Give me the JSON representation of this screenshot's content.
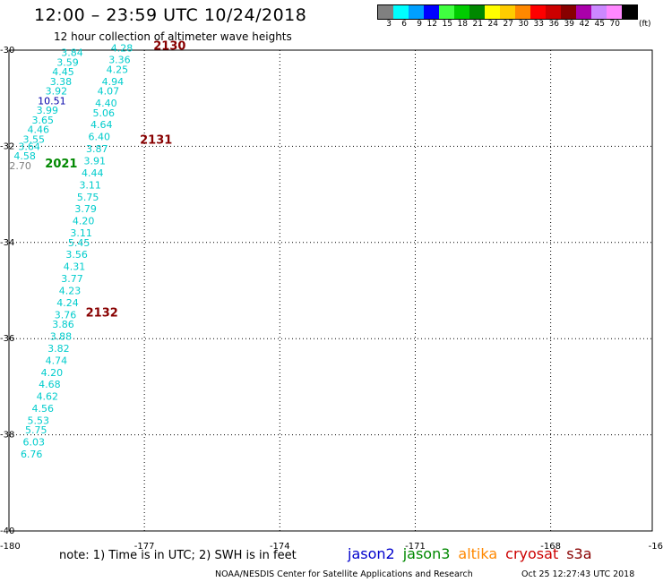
{
  "header": {
    "title": "12:00 – 23:59 UTC 10/24/2018",
    "subtitle": "12 hour collection of altimeter wave heights"
  },
  "scale": {
    "unit": "(ft)",
    "swatches": [
      {
        "label": "3",
        "color": "#808080"
      },
      {
        "label": "6",
        "color": "#00ffff"
      },
      {
        "label": "9",
        "color": "#00a0ff"
      },
      {
        "label": "12",
        "color": "#0000ff"
      },
      {
        "label": "15",
        "color": "#40ff40"
      },
      {
        "label": "18",
        "color": "#00cc00"
      },
      {
        "label": "21",
        "color": "#008800"
      },
      {
        "label": "24",
        "color": "#ffff00"
      },
      {
        "label": "27",
        "color": "#ffcc00"
      },
      {
        "label": "30",
        "color": "#ff8800"
      },
      {
        "label": "33",
        "color": "#ff0000"
      },
      {
        "label": "36",
        "color": "#cc0000"
      },
      {
        "label": "39",
        "color": "#880000"
      },
      {
        "label": "42",
        "color": "#aa00aa"
      },
      {
        "label": "45",
        "color": "#cc88ff"
      },
      {
        "label": "70",
        "color": "#ff88ff"
      },
      {
        "label": "",
        "color": "#000000"
      }
    ]
  },
  "axes": {
    "lon_labels": [
      "-180",
      "-177",
      "-174",
      "-171",
      "-168",
      "-16"
    ],
    "lat_labels": [
      "-30",
      "-32",
      "-34",
      "-36",
      "-38",
      "-40"
    ]
  },
  "track_labels": [
    {
      "text": "2130",
      "lon": -176.8,
      "lat": -29.9,
      "color": "#880000"
    },
    {
      "text": "2131",
      "lon": -177.1,
      "lat": -31.85,
      "color": "#880000"
    },
    {
      "text": "2132",
      "lon": -178.3,
      "lat": -35.45,
      "color": "#880000"
    },
    {
      "text": "2021",
      "lon": -179.2,
      "lat": -32.35,
      "color": "#008800"
    }
  ],
  "tracks": {
    "track_a": [
      {
        "v": "3.84",
        "lon": -178.6,
        "lat": -30.05,
        "color": "#00cccc"
      },
      {
        "v": "3.59",
        "lon": -178.7,
        "lat": -30.25,
        "color": "#00cccc"
      },
      {
        "v": "4.45",
        "lon": -178.8,
        "lat": -30.45,
        "color": "#00cccc"
      },
      {
        "v": "3.38",
        "lon": -178.85,
        "lat": -30.65,
        "color": "#00cccc"
      },
      {
        "v": "3.92",
        "lon": -178.95,
        "lat": -30.85,
        "color": "#00cccc"
      },
      {
        "v": "10.51",
        "lon": -179.05,
        "lat": -31.05,
        "color": "#0000aa"
      },
      {
        "v": "3.99",
        "lon": -179.15,
        "lat": -31.25,
        "color": "#00cccc"
      },
      {
        "v": "3.65",
        "lon": -179.25,
        "lat": -31.45,
        "color": "#00cccc"
      },
      {
        "v": "4.46",
        "lon": -179.35,
        "lat": -31.65,
        "color": "#00cccc"
      },
      {
        "v": "3.55",
        "lon": -179.45,
        "lat": -31.85,
        "color": "#00cccc"
      },
      {
        "v": "3.64",
        "lon": -179.55,
        "lat": -32.0,
        "color": "#00cccc"
      },
      {
        "v": "4.58",
        "lon": -179.65,
        "lat": -32.2,
        "color": "#00cccc"
      },
      {
        "v": "2.70",
        "lon": -179.75,
        "lat": -32.4,
        "color": "#808080"
      }
    ],
    "track_b": [
      {
        "v": "4.28",
        "lon": -177.5,
        "lat": -29.95,
        "color": "#00cccc"
      },
      {
        "v": "3.36",
        "lon": -177.55,
        "lat": -30.2,
        "color": "#00cccc"
      },
      {
        "v": "4.25",
        "lon": -177.6,
        "lat": -30.4,
        "color": "#00cccc"
      },
      {
        "v": "4.94",
        "lon": -177.7,
        "lat": -30.65,
        "color": "#00cccc"
      },
      {
        "v": "4.07",
        "lon": -177.8,
        "lat": -30.85,
        "color": "#00cccc"
      },
      {
        "v": "4.40",
        "lon": -177.85,
        "lat": -31.1,
        "color": "#00cccc"
      },
      {
        "v": "5.06",
        "lon": -177.9,
        "lat": -31.3,
        "color": "#00cccc"
      },
      {
        "v": "4.64",
        "lon": -177.95,
        "lat": -31.55,
        "color": "#00cccc"
      },
      {
        "v": "6.40",
        "lon": -178.0,
        "lat": -31.8,
        "color": "#00cccc"
      },
      {
        "v": "3.87",
        "lon": -178.05,
        "lat": -32.05,
        "color": "#00cccc"
      },
      {
        "v": "3.91",
        "lon": -178.1,
        "lat": -32.3,
        "color": "#00cccc"
      },
      {
        "v": "4.44",
        "lon": -178.15,
        "lat": -32.55,
        "color": "#00cccc"
      },
      {
        "v": "3.11",
        "lon": -178.2,
        "lat": -32.8,
        "color": "#00cccc"
      },
      {
        "v": "5.75",
        "lon": -178.25,
        "lat": -33.05,
        "color": "#00cccc"
      },
      {
        "v": "3.79",
        "lon": -178.3,
        "lat": -33.3,
        "color": "#00cccc"
      },
      {
        "v": "4.20",
        "lon": -178.35,
        "lat": -33.55,
        "color": "#00cccc"
      },
      {
        "v": "3.11",
        "lon": -178.4,
        "lat": -33.8,
        "color": "#00cccc"
      },
      {
        "v": "5.45",
        "lon": -178.45,
        "lat": -34.0,
        "color": "#00cccc"
      },
      {
        "v": "3.56",
        "lon": -178.5,
        "lat": -34.25,
        "color": "#00cccc"
      },
      {
        "v": "4.31",
        "lon": -178.55,
        "lat": -34.5,
        "color": "#00cccc"
      },
      {
        "v": "3.77",
        "lon": -178.6,
        "lat": -34.75,
        "color": "#00cccc"
      },
      {
        "v": "4.23",
        "lon": -178.65,
        "lat": -35.0,
        "color": "#00cccc"
      },
      {
        "v": "4.24",
        "lon": -178.7,
        "lat": -35.25,
        "color": "#00cccc"
      },
      {
        "v": "3.76",
        "lon": -178.75,
        "lat": -35.5,
        "color": "#00cccc"
      },
      {
        "v": "3.86",
        "lon": -178.8,
        "lat": -35.7,
        "color": "#00cccc"
      },
      {
        "v": "3.88",
        "lon": -178.85,
        "lat": -35.95,
        "color": "#00cccc"
      },
      {
        "v": "3.82",
        "lon": -178.9,
        "lat": -36.2,
        "color": "#00cccc"
      },
      {
        "v": "4.74",
        "lon": -178.95,
        "lat": -36.45,
        "color": "#00cccc"
      },
      {
        "v": "4.20",
        "lon": -179.05,
        "lat": -36.7,
        "color": "#00cccc"
      },
      {
        "v": "4.68",
        "lon": -179.1,
        "lat": -36.95,
        "color": "#00cccc"
      },
      {
        "v": "4.62",
        "lon": -179.15,
        "lat": -37.2,
        "color": "#00cccc"
      },
      {
        "v": "4.56",
        "lon": -179.25,
        "lat": -37.45,
        "color": "#00cccc"
      },
      {
        "v": "5.53",
        "lon": -179.35,
        "lat": -37.7,
        "color": "#00cccc"
      },
      {
        "v": "5.75",
        "lon": -179.4,
        "lat": -37.9,
        "color": "#00cccc"
      },
      {
        "v": "6.03",
        "lon": -179.45,
        "lat": -38.15,
        "color": "#00cccc"
      },
      {
        "v": "6.76",
        "lon": -179.5,
        "lat": -38.4,
        "color": "#00cccc"
      }
    ]
  },
  "footer": {
    "note": "note: 1) Time is in UTC; 2) SWH is in feet",
    "legend": [
      {
        "label": "jason2",
        "color": "#0000cc"
      },
      {
        "label": "jason3",
        "color": "#008800"
      },
      {
        "label": "altika",
        "color": "#ff8800"
      },
      {
        "label": "cryosat",
        "color": "#cc0000"
      },
      {
        "label": "s3a",
        "color": "#880000"
      }
    ],
    "credit": "NOAA/NESDIS Center for Satellite Applications and Research",
    "timestamp": "Oct 25 12:27:43 UTC 2018"
  }
}
